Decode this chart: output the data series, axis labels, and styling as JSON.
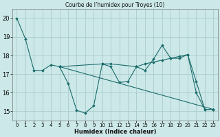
{
  "title": "Courbe de l’humidex pour Troyes (10)",
  "xlabel": "Humidex (Indice chaleur)",
  "xlim": [
    -0.5,
    23.5
  ],
  "ylim": [
    14.5,
    20.5
  ],
  "yticks": [
    15,
    16,
    17,
    18,
    19,
    20
  ],
  "xticks": [
    0,
    1,
    2,
    3,
    4,
    5,
    6,
    7,
    8,
    9,
    10,
    11,
    12,
    13,
    14,
    15,
    16,
    17,
    18,
    19,
    20,
    21,
    22,
    23
  ],
  "bg_color": "#cce8e8",
  "grid_color": "#aacccc",
  "line_color": "#1a6b6b",
  "series": [
    {
      "x": [
        0,
        1,
        2,
        3,
        4,
        5
      ],
      "y": [
        20,
        18.9,
        17.2,
        17.2,
        17.5,
        17.4
      ]
    },
    {
      "x": [
        5,
        6,
        7,
        8,
        9,
        10,
        11,
        12,
        13,
        14,
        15,
        16,
        17,
        18,
        19,
        20,
        21,
        22,
        23
      ],
      "y": [
        17.4,
        16.5,
        15.05,
        14.9,
        15.3,
        17.55,
        17.4,
        16.55,
        16.6,
        17.4,
        17.2,
        17.8,
        18.55,
        17.85,
        17.85,
        18.05,
        16.6,
        15.1,
        15.1
      ]
    },
    {
      "x": [
        5,
        10,
        11,
        14,
        15,
        16,
        17,
        18,
        19,
        20,
        21,
        22,
        23
      ],
      "y": [
        17.4,
        17.55,
        17.55,
        17.4,
        17.55,
        17.65,
        17.75,
        17.85,
        17.95,
        18.05,
        16.0,
        15.1,
        15.1
      ]
    },
    {
      "x": [
        5,
        23
      ],
      "y": [
        17.4,
        15.1
      ]
    }
  ]
}
